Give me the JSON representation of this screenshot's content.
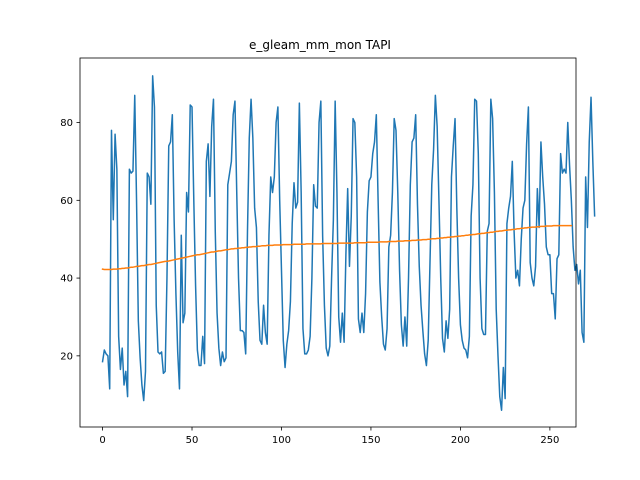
{
  "chart_data": {
    "type": "line",
    "title": "e_gleam_mm_mon TAPI",
    "xlabel": "",
    "ylabel": "",
    "xlim": [
      -12.6,
      264.6
    ],
    "ylim": [
      1.7,
      96.6
    ],
    "x_ticks": [
      0,
      50,
      100,
      150,
      200,
      250
    ],
    "y_ticks": [
      20,
      40,
      60,
      80
    ],
    "grid": false,
    "legend": "none",
    "series": [
      {
        "color": "#1f77b4",
        "values": [
          18.5,
          21.5,
          20.5,
          20,
          11.5,
          78,
          55,
          77,
          68,
          25,
          16.5,
          22,
          12.5,
          16,
          9.5,
          68,
          67,
          67.5,
          87,
          60,
          29,
          19.5,
          12.5,
          8.5,
          16,
          67,
          66,
          59,
          92,
          84,
          33,
          21,
          20.5,
          21,
          15.5,
          16,
          40,
          74,
          75,
          82,
          55,
          36,
          21,
          11.5,
          51,
          28.5,
          31,
          62,
          57,
          84.5,
          84,
          60,
          38,
          21.5,
          17.5,
          17.5,
          25,
          18,
          70,
          74.5,
          61,
          79,
          86,
          52,
          31,
          22,
          17.5,
          21,
          18.5,
          19.5,
          64,
          67,
          70,
          82,
          85.5,
          62,
          40,
          26.5,
          26.5,
          26,
          20.5,
          52,
          76,
          86,
          76,
          58,
          53,
          34,
          24,
          23,
          33,
          26,
          23,
          51,
          66,
          62,
          66,
          80,
          84,
          60,
          42,
          24,
          17,
          23,
          26.5,
          34,
          54,
          64.5,
          58,
          59.5,
          85,
          62,
          27,
          20.5,
          20.5,
          21.5,
          25,
          40,
          64,
          58.5,
          58,
          80,
          85.5,
          51,
          33,
          22,
          20,
          22.5,
          40,
          55,
          85.5,
          62,
          30,
          23.5,
          31,
          23.5,
          46,
          63,
          43,
          56,
          81,
          80,
          66,
          29.5,
          26,
          31,
          26,
          36,
          57,
          65,
          66,
          72,
          75,
          82,
          60,
          39,
          30,
          23,
          21.5,
          27,
          48,
          51,
          62,
          81,
          78,
          62,
          42,
          28,
          22.5,
          30,
          22.5,
          40,
          64,
          75,
          76,
          82,
          59,
          43,
          33,
          26.5,
          20.5,
          17.5,
          24,
          44,
          64,
          73,
          87,
          79,
          60,
          40,
          24.5,
          21,
          29,
          24.5,
          32,
          66,
          74,
          81,
          58,
          40,
          28,
          24,
          22,
          21.5,
          19.5,
          25,
          56,
          64,
          86,
          85.5,
          72,
          40,
          27,
          25.5,
          25.5,
          52,
          54,
          86,
          81,
          62,
          32,
          20,
          9.5,
          6,
          17,
          9,
          54,
          58,
          61,
          70,
          52,
          40,
          42,
          38,
          50,
          58,
          60,
          74.5,
          84,
          44,
          40,
          38,
          43,
          63,
          53,
          75,
          66,
          59,
          48,
          46,
          46,
          36,
          36,
          29.5,
          45,
          46,
          72,
          67,
          68,
          67,
          80,
          69,
          60,
          48,
          42,
          43.5,
          38.5,
          42,
          26,
          23.5,
          66,
          53,
          75,
          86.5,
          70,
          56
        ]
      },
      {
        "color": "#ff7f0e",
        "values": [
          42.3,
          42.2,
          42.2,
          42.2,
          42.2,
          42.2,
          42.3,
          42.3,
          42.3,
          42.4,
          42.4,
          42.5,
          42.5,
          42.6,
          42.6,
          42.7,
          42.8,
          42.8,
          42.9,
          43.0,
          43.0,
          43.1,
          43.2,
          43.2,
          43.3,
          43.4,
          43.5,
          43.5,
          43.6,
          43.7,
          43.8,
          43.9,
          44.0,
          44.1,
          44.2,
          44.3,
          44.3,
          44.4,
          44.5,
          44.6,
          44.7,
          44.8,
          44.9,
          45.0,
          45.1,
          45.2,
          45.3,
          45.4,
          45.5,
          45.6,
          45.7,
          45.8,
          45.9,
          46.0,
          46.0,
          46.1,
          46.2,
          46.3,
          46.4,
          46.5,
          46.6,
          46.7,
          46.7,
          46.8,
          46.9,
          47.0,
          47.0,
          47.1,
          47.2,
          47.3,
          47.3,
          47.4,
          47.5,
          47.5,
          47.6,
          47.6,
          47.7,
          47.7,
          47.8,
          47.8,
          47.9,
          47.9,
          48.0,
          48.0,
          48.1,
          48.1,
          48.1,
          48.2,
          48.2,
          48.3,
          48.3,
          48.3,
          48.4,
          48.4,
          48.4,
          48.4,
          48.5,
          48.5,
          48.5,
          48.5,
          48.5,
          48.6,
          48.6,
          48.6,
          48.6,
          48.6,
          48.6,
          48.7,
          48.7,
          48.7,
          48.7,
          48.7,
          48.7,
          48.7,
          48.8,
          48.8,
          48.8,
          48.8,
          48.8,
          48.8,
          48.8,
          48.8,
          48.8,
          48.9,
          48.9,
          48.9,
          48.9,
          48.9,
          48.9,
          48.9,
          48.9,
          48.9,
          49.0,
          49.0,
          49.0,
          49.0,
          49.0,
          49.0,
          49.0,
          49.0,
          49.0,
          49.1,
          49.1,
          49.1,
          49.1,
          49.1,
          49.1,
          49.1,
          49.2,
          49.2,
          49.2,
          49.2,
          49.2,
          49.2,
          49.2,
          49.3,
          49.3,
          49.3,
          49.3,
          49.3,
          49.4,
          49.4,
          49.4,
          49.4,
          49.4,
          49.5,
          49.5,
          49.5,
          49.5,
          49.6,
          49.6,
          49.6,
          49.6,
          49.7,
          49.7,
          49.7,
          49.8,
          49.8,
          49.8,
          49.9,
          49.9,
          49.9,
          50.0,
          50.0,
          50.1,
          50.1,
          50.1,
          50.2,
          50.2,
          50.3,
          50.3,
          50.4,
          50.4,
          50.5,
          50.5,
          50.6,
          50.6,
          50.7,
          50.7,
          50.8,
          50.8,
          50.9,
          50.9,
          51.0,
          51.0,
          51.1,
          51.1,
          51.2,
          51.2,
          51.3,
          51.4,
          51.4,
          51.5,
          51.5,
          51.6,
          51.7,
          51.7,
          51.8,
          51.8,
          51.9,
          52.0,
          52.0,
          52.1,
          52.1,
          52.2,
          52.3,
          52.3,
          52.4,
          52.4,
          52.5,
          52.5,
          52.6,
          52.7,
          52.7,
          52.8,
          52.8,
          52.9,
          52.9,
          53.0,
          53.0,
          53.1,
          53.1,
          53.1,
          53.2,
          53.2,
          53.3,
          53.3,
          53.3,
          53.4,
          53.4,
          53.4,
          53.4,
          53.5,
          53.5,
          53.5,
          53.5,
          53.5,
          53.5,
          53.5,
          53.5,
          53.5,
          53.5,
          53.5
        ]
      }
    ]
  }
}
